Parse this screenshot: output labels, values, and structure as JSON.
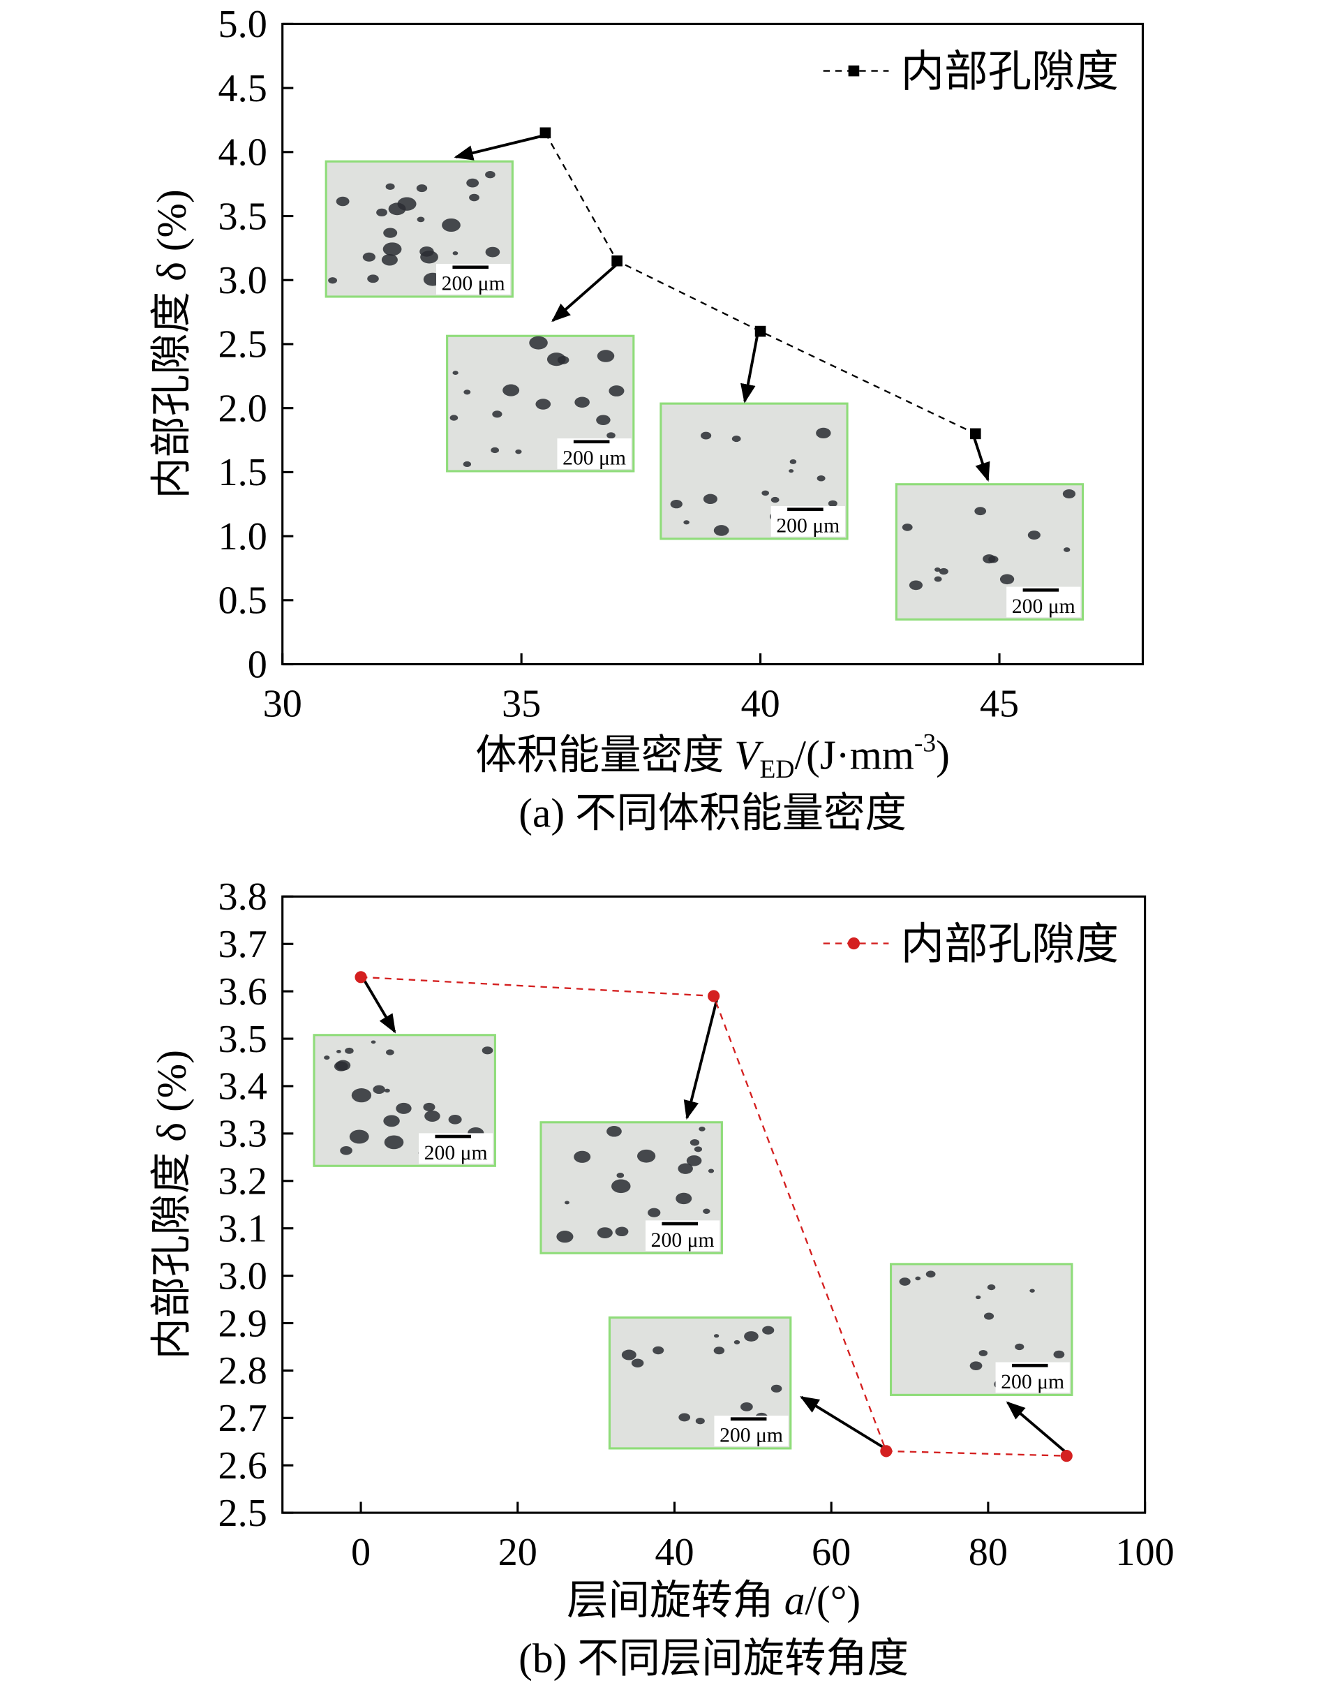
{
  "chart_data": [
    {
      "type": "line",
      "title": "(a) 不同体积能量密度",
      "xlabel": "体积能量密度 V_ED/(J·mm^-3)",
      "xlabel_parts": {
        "main": "体积能量密度 ",
        "var": "V",
        "sub": "ED",
        "unit": "/(J·mm",
        "sup": "-3",
        "close": ")"
      },
      "ylabel": "内部孔隙度 δ (%)",
      "xlim": [
        30,
        48
      ],
      "ylim": [
        0,
        5.0
      ],
      "xticks": [
        30,
        35,
        40,
        45
      ],
      "xtick_labels": [
        "30",
        "35",
        "40",
        "45"
      ],
      "yticks": [
        0,
        0.5,
        1.0,
        1.5,
        2.0,
        2.5,
        3.0,
        3.5,
        4.0,
        4.5,
        5.0
      ],
      "ytick_labels": [
        "0",
        "0.5",
        "1.0",
        "1.5",
        "2.0",
        "2.5",
        "3.0",
        "3.5",
        "4.0",
        "4.5",
        "5.0"
      ],
      "legend": "top-right",
      "grid": false,
      "series": [
        {
          "name": "内部孔隙度",
          "color": "#000000",
          "marker": "square",
          "line": "dashed",
          "x": [
            35.5,
            37.0,
            40.0,
            44.5
          ],
          "y": [
            4.15,
            3.15,
            2.6,
            1.8
          ]
        }
      ],
      "inset_label": "200 μm"
    },
    {
      "type": "line",
      "title": "(b) 不同层间旋转角度",
      "xlabel": "层间旋转角 a/(°)",
      "xlabel_parts": {
        "main": "层间旋转角 ",
        "var": "a",
        "unit": "/(°)"
      },
      "ylabel": "内部孔隙度 δ (%)",
      "xlim": [
        -10,
        100
      ],
      "ylim": [
        2.5,
        3.8
      ],
      "xticks": [
        0,
        20,
        40,
        60,
        80,
        100
      ],
      "xtick_labels": [
        "0",
        "20",
        "40",
        "60",
        "80",
        "100"
      ],
      "yticks": [
        2.5,
        2.6,
        2.7,
        2.8,
        2.9,
        3.0,
        3.1,
        3.2,
        3.3,
        3.4,
        3.5,
        3.6,
        3.7,
        3.8
      ],
      "ytick_labels": [
        "2.5",
        "2.6",
        "2.7",
        "2.8",
        "2.9",
        "3.0",
        "3.1",
        "3.2",
        "3.3",
        "3.4",
        "3.5",
        "3.6",
        "3.7",
        "3.8"
      ],
      "legend": "top-right",
      "grid": false,
      "series": [
        {
          "name": "内部孔隙度",
          "color": "#d42020",
          "marker": "circle",
          "line": "dashed",
          "x": [
            0,
            45,
            67,
            90
          ],
          "y": [
            3.63,
            3.59,
            2.63,
            2.62
          ]
        }
      ],
      "inset_label": "200 μm"
    }
  ]
}
